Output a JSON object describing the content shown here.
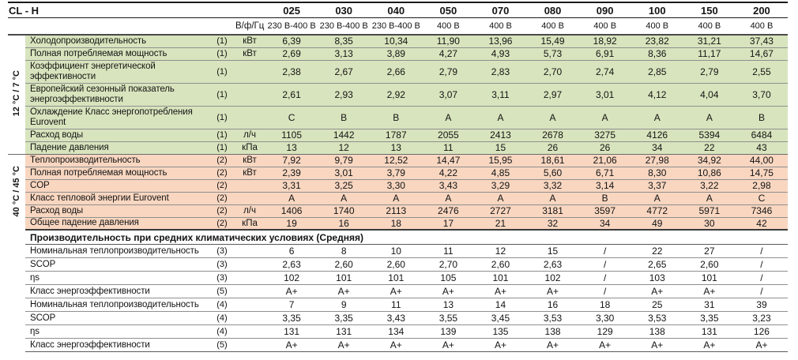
{
  "header": {
    "title": "CL - H",
    "electrical_label": "В/ф/Гц",
    "models": [
      "025",
      "030",
      "040",
      "050",
      "070",
      "080",
      "090",
      "100",
      "150",
      "200"
    ],
    "voltages": [
      "230 В-400 В",
      "230 В-400 В",
      "230 В-400 В",
      "400 В",
      "400 В",
      "400 В",
      "400 В",
      "400 В",
      "400 В",
      "400 В"
    ]
  },
  "colors": {
    "cooling_section_bg": "#d8e4bd",
    "heating_section_bg": "#f8d6c0"
  },
  "sections": [
    {
      "id": "cooling",
      "side_label": "12 °C / 7 °C",
      "rows": [
        {
          "label": "Холодопроизводительность",
          "note": "(1)",
          "unit": "кВт",
          "values": [
            "6,39",
            "8,35",
            "10,34",
            "11,90",
            "13,96",
            "15,49",
            "18,92",
            "23,82",
            "31,21",
            "37,43"
          ]
        },
        {
          "label": "Полная потребляемая мощность",
          "note": "(1)",
          "unit": "кВт",
          "values": [
            "2,69",
            "3,13",
            "3,89",
            "4,27",
            "4,93",
            "5,73",
            "6,91",
            "8,36",
            "11,17",
            "14,67"
          ]
        },
        {
          "label": "Коэффициент энергетической эффективности",
          "note": "(1)",
          "unit": "",
          "values": [
            "2,38",
            "2,67",
            "2,66",
            "2,79",
            "2,83",
            "2,70",
            "2,74",
            "2,85",
            "2,79",
            "2,55"
          ],
          "tall": true
        },
        {
          "label": "Европейский сезонный показатель энергоэффективности",
          "note": "(1)",
          "unit": "",
          "values": [
            "2,61",
            "2,93",
            "2,92",
            "3,07",
            "3,11",
            "2,97",
            "3,01",
            "4,12",
            "4,04",
            "3,70"
          ],
          "tall": true
        },
        {
          "label": "Охлаждение Класс энергопотребления Eurovent",
          "note": "(1)",
          "unit": "",
          "values": [
            "C",
            "B",
            "B",
            "A",
            "A",
            "A",
            "A",
            "A",
            "A",
            "B"
          ],
          "tall": true
        },
        {
          "label": "Расход воды",
          "note": "(1)",
          "unit": "л/ч",
          "values": [
            "1105",
            "1442",
            "1787",
            "2055",
            "2413",
            "2678",
            "3275",
            "4126",
            "5394",
            "6484"
          ]
        },
        {
          "label": "Падение давления",
          "note": "(1)",
          "unit": "кПа",
          "values": [
            "13",
            "12",
            "13",
            "11",
            "15",
            "26",
            "26",
            "34",
            "22",
            "43"
          ]
        }
      ]
    },
    {
      "id": "heating",
      "side_label": "40 °C / 45 °C",
      "rows": [
        {
          "label": "Теплопроизводительность",
          "note": "(2)",
          "unit": "кВт",
          "values": [
            "7,92",
            "9,79",
            "12,52",
            "14,47",
            "15,95",
            "18,61",
            "21,06",
            "27,98",
            "34,92",
            "44,00"
          ]
        },
        {
          "label": "Полная потребляемая мощность",
          "note": "(2)",
          "unit": "кВт",
          "values": [
            "2,39",
            "3,01",
            "3,79",
            "4,22",
            "4,85",
            "5,60",
            "6,71",
            "8,30",
            "10,86",
            "14,75"
          ]
        },
        {
          "label": "COP",
          "note": "(2)",
          "unit": "",
          "values": [
            "3,31",
            "3,25",
            "3,30",
            "3,43",
            "3,29",
            "3,32",
            "3,14",
            "3,37",
            "3,22",
            "2,98"
          ]
        },
        {
          "label": "Класс тепловой энергии Eurovent",
          "note": "(2)",
          "unit": "",
          "values": [
            "A",
            "A",
            "A",
            "A",
            "A",
            "A",
            "B",
            "A",
            "A",
            "C"
          ]
        },
        {
          "label": "Расход воды",
          "note": "(2)",
          "unit": "л/ч",
          "values": [
            "1406",
            "1740",
            "2113",
            "2476",
            "2727",
            "3181",
            "3597",
            "4772",
            "5971",
            "7346"
          ]
        },
        {
          "label": "Общее падение давления",
          "note": "(2)",
          "unit": "кПа",
          "values": [
            "19",
            "16",
            "18",
            "17",
            "21",
            "32",
            "34",
            "49",
            "30",
            "42"
          ]
        }
      ]
    },
    {
      "id": "average-climate",
      "side_label": "",
      "section_header": "Производительность при средних климатических условиях (Средняя)",
      "rows": [
        {
          "label": "Номинальная теплопроизводительность",
          "note": "(3)",
          "unit": "",
          "values": [
            "6",
            "8",
            "10",
            "11",
            "12",
            "15",
            "/",
            "22",
            "27",
            "/"
          ]
        },
        {
          "label": "SCOP",
          "note": "(3)",
          "unit": "",
          "values": [
            "2,63",
            "2,60",
            "2,60",
            "2,70",
            "2,60",
            "2,63",
            "/",
            "2,65",
            "2,60",
            "/"
          ]
        },
        {
          "label": "ηs",
          "note": "(3)",
          "unit": "",
          "values": [
            "102",
            "101",
            "101",
            "105",
            "101",
            "102",
            "/",
            "103",
            "101",
            "/"
          ]
        },
        {
          "label": "Класс энергоэффективности",
          "note": "(5)",
          "unit": "",
          "values": [
            "A+",
            "A+",
            "A+",
            "A+",
            "A+",
            "A+",
            "/",
            "A+",
            "A+",
            "/"
          ]
        },
        {
          "label": "Номинальная теплопроизводительность",
          "note": "(4)",
          "unit": "",
          "values": [
            "7",
            "9",
            "11",
            "13",
            "14",
            "16",
            "18",
            "25",
            "31",
            "39"
          ]
        },
        {
          "label": "SCOP",
          "note": "(4)",
          "unit": "",
          "values": [
            "3,35",
            "3,35",
            "3,43",
            "3,55",
            "3,45",
            "3,53",
            "3,30",
            "3,53",
            "3,35",
            "3,23"
          ]
        },
        {
          "label": "ηs",
          "note": "(4)",
          "unit": "",
          "values": [
            "131",
            "131",
            "134",
            "139",
            "135",
            "138",
            "129",
            "138",
            "131",
            "126"
          ]
        },
        {
          "label": "Класс энергоэффективности",
          "note": "(5)",
          "unit": "",
          "values": [
            "A+",
            "A+",
            "A+",
            "A+",
            "A+",
            "A+",
            "A+",
            "A+",
            "A+",
            "A+"
          ]
        }
      ]
    }
  ]
}
